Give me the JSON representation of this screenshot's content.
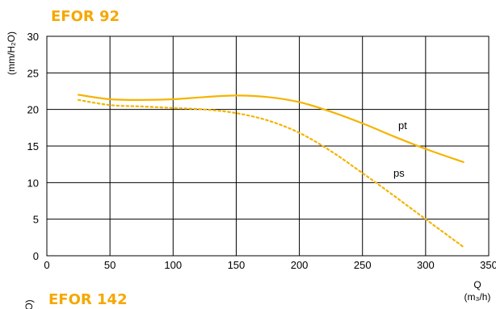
{
  "chart_data": {
    "type": "line",
    "title": "EFOR 92",
    "next_title": "EFOR  142",
    "xlabel": "Q",
    "xunit": "(m₃/h)",
    "ylabel": "(mm/H₂O)",
    "xlim": [
      0,
      350
    ],
    "ylim": [
      0,
      30
    ],
    "xticks": [
      0,
      50,
      100,
      150,
      200,
      250,
      300,
      350
    ],
    "yticks": [
      0,
      5,
      10,
      15,
      20,
      25,
      30
    ],
    "grid": true,
    "color": "#f5b400",
    "series": [
      {
        "name": "pt",
        "style": "solid",
        "x": [
          25,
          50,
          75,
          100,
          125,
          150,
          175,
          200,
          225,
          250,
          275,
          300,
          330
        ],
        "y": [
          22.0,
          21.4,
          21.3,
          21.4,
          21.7,
          21.9,
          21.7,
          21.0,
          19.7,
          18.1,
          16.3,
          14.6,
          12.8
        ]
      },
      {
        "name": "ps",
        "style": "dotted",
        "x": [
          25,
          50,
          75,
          100,
          125,
          150,
          175,
          200,
          225,
          250,
          275,
          300,
          330
        ],
        "y": [
          21.3,
          20.6,
          20.4,
          20.2,
          20.0,
          19.5,
          18.5,
          16.8,
          14.3,
          11.3,
          8.2,
          5.0,
          1.2
        ]
      }
    ]
  }
}
